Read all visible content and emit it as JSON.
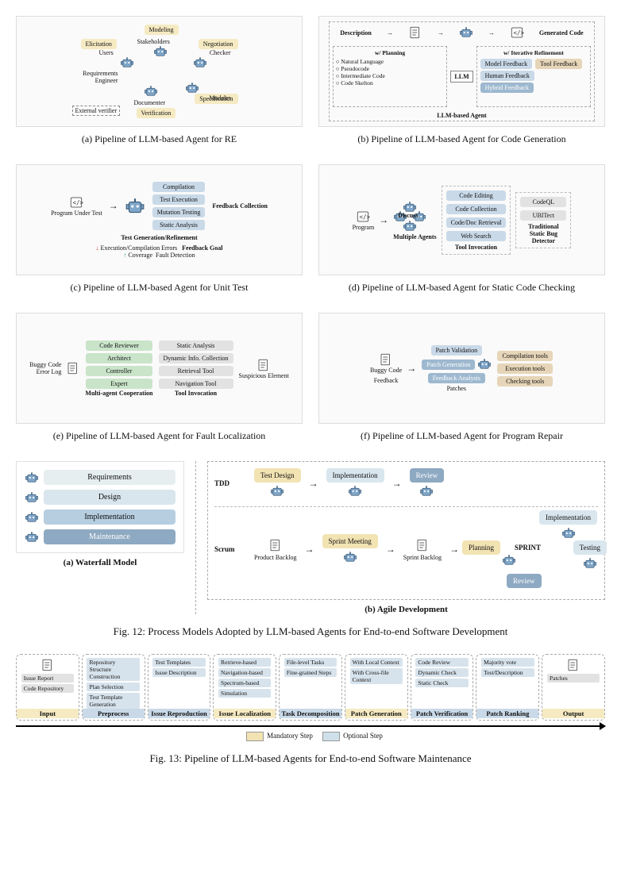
{
  "colors": {
    "yellow": "#f5eac2",
    "blue": "#c9d9e8",
    "green": "#c9e4c9",
    "steel": "#9db8cf",
    "gray": "#e2e2e2",
    "brown": "#e6d5b8",
    "mandatory": "#f2e3b3",
    "optional": "#cfe0ea"
  },
  "panels": {
    "a": {
      "caption": "(a) Pipeline of LLM-based Agent for RE",
      "outer": [
        "Modeling",
        "Negotiation",
        "Specification",
        "Verification",
        "Elicitation"
      ],
      "inner": [
        "Stakeholders",
        "Checker",
        "Modeler",
        "Documenter",
        "Requirements Engineer",
        "Users"
      ],
      "external": "External verifier"
    },
    "b": {
      "caption": "(b) Pipeline of LLM-based Agent for Code Generation",
      "top": [
        "Description",
        "Generated Code"
      ],
      "planning_title": "w/ Planning",
      "planning": [
        "Natural Language",
        "Pseudocode",
        "Intermediate Code",
        "Code Skelton"
      ],
      "refine_title": "w/ Iterative Refinement",
      "refine": [
        "Model Feedback",
        "Tool Feedback",
        "Human Feedback",
        "Hybrid Feedback"
      ],
      "llm": "LLM",
      "box_label": "LLM-based Agent"
    },
    "c": {
      "caption": "(c) Pipeline of LLM-based Agent for Unit Test",
      "input": "Program Under Test",
      "header": "Test Generation/Refinement",
      "feedback_title": "Feedback Collection",
      "feedback": [
        "Compilation",
        "Test Execution",
        "Mutation Testing",
        "Static Analysis"
      ],
      "goal_title": "Feedback Goal",
      "goal_bad": "Execution/Compilation Errors",
      "goal_good": [
        "Coverage",
        "Fault Detection"
      ]
    },
    "d": {
      "caption": "(d) Pipeline of LLM-based Agent for Static Code Checking",
      "input": "Program",
      "agents": "Multiple Agents",
      "discuss": "Discuss",
      "tool_title": "Tool Invocation",
      "tools": [
        "Code Editing",
        "Code Collection",
        "Code/Doc Retrieval",
        "Web Search"
      ],
      "trad_title": "Traditional Static Bug Detector",
      "trad": [
        "CodeQL",
        "UBITect"
      ]
    },
    "e": {
      "caption": "(e) Pipeline of LLM-based Agent for Fault Localization",
      "inputs": [
        "Buggy Code",
        "Error Log"
      ],
      "coop_title": "Multi-agent Cooperation",
      "roles": [
        "Code Reviewer",
        "Architect",
        "Controller",
        "Expert"
      ],
      "tool_title": "Tool Invocation",
      "tools": [
        "Static Analysis",
        "Dynamic Info. Collection",
        "Retrieval Tool",
        "Navigation Tool"
      ],
      "output": "Suspicious Element"
    },
    "f": {
      "caption": "(f) Pipeline of LLM-based Agent for Program Repair",
      "input": "Buggy Code",
      "patches": "Patches",
      "feedback": "Feedback",
      "stages": [
        "Patch Generation",
        "Patch Validation",
        "Feedback Analysis"
      ],
      "tools": [
        "Compilation tools",
        "Execution tools",
        "Checking tools"
      ]
    }
  },
  "fig12": {
    "caption": "Fig. 12: Process Models Adopted by LLM-based Agents for End-to-end Software Development",
    "waterfall": {
      "sub": "(a) Waterfall Model",
      "steps": [
        {
          "label": "Requirements",
          "color": "#e7eef0"
        },
        {
          "label": "Design",
          "color": "#d9e6ee"
        },
        {
          "label": "Implementation",
          "color": "#b6cee0"
        },
        {
          "label": "Maintenance",
          "color": "#8ea9c2"
        }
      ]
    },
    "agile": {
      "sub": "(b) Agile Development",
      "tdd_label": "TDD",
      "tdd": [
        {
          "label": "Test Design",
          "color": "#f2e3b3"
        },
        {
          "label": "Implementation",
          "color": "#d9e6ee"
        },
        {
          "label": "Review",
          "color": "#8ea9c2"
        }
      ],
      "scrum_label": "Scrum",
      "backlog1": "Product Backlog",
      "meeting": "Sprint Meeting",
      "backlog2": "Sprint Backlog",
      "sprint_center": "SPRINT",
      "sprint_ring": [
        {
          "label": "Planning",
          "color": "#f2e3b3"
        },
        {
          "label": "Implementation",
          "color": "#d9e6ee"
        },
        {
          "label": "Testing",
          "color": "#d9e6ee"
        },
        {
          "label": "Review",
          "color": "#8ea9c2"
        }
      ]
    }
  },
  "fig13": {
    "caption": "Fig. 13: Pipeline of LLM-based Agents for End-to-end Software Maintenance",
    "legend": {
      "mandatory": "Mandatory Step",
      "optional": "Optional Step"
    },
    "steps": [
      {
        "title": "Input",
        "mandatory": true,
        "items": [
          "Issue Report",
          "Code Repository"
        ],
        "icons": true
      },
      {
        "title": "Preprocess",
        "mandatory": false,
        "items": [
          "Repository Structure Construction",
          "Plan Selection",
          "Test Template Generation"
        ]
      },
      {
        "title": "Issue Reproduction",
        "mandatory": false,
        "items": [
          "Test Templates",
          "Issue Description"
        ]
      },
      {
        "title": "Issue Localization",
        "mandatory": true,
        "items": [
          "Retrieve-based",
          "Navigation-based",
          "Spectrum-based",
          "Simulation"
        ]
      },
      {
        "title": "Task Decomposition",
        "mandatory": false,
        "items": [
          "File-level Tasks",
          "Fine-grained Steps"
        ]
      },
      {
        "title": "Patch Generation",
        "mandatory": true,
        "items": [
          "With Local Context",
          "With Cross-file Context"
        ]
      },
      {
        "title": "Patch Verification",
        "mandatory": false,
        "items": [
          "Code Review",
          "Dynamic Check",
          "Static Check"
        ]
      },
      {
        "title": "Patch Ranking",
        "mandatory": false,
        "items": [
          "Majority vote",
          "Test/Description"
        ]
      },
      {
        "title": "Output",
        "mandatory": true,
        "items": [
          "Patches"
        ],
        "icons": true
      }
    ]
  }
}
